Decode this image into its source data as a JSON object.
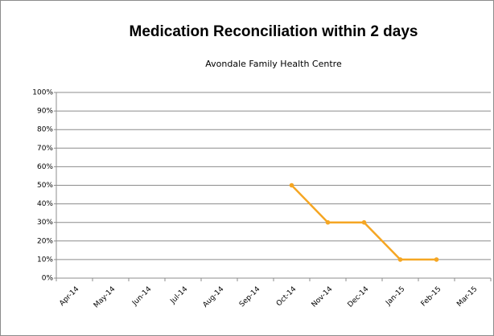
{
  "chart_data": {
    "type": "line",
    "title": "Medication Reconciliation within 2 days",
    "subtitle": "Avondale Family Health Centre",
    "categories": [
      "Apr-14",
      "May-14",
      "Jun-14",
      "Jul-14",
      "Aug-14",
      "Sep-14",
      "Oct-14",
      "Nov-14",
      "Dec-14",
      "Jan-15",
      "Feb-15",
      "Mar-15"
    ],
    "values": [
      null,
      null,
      null,
      null,
      null,
      null,
      50,
      30,
      30,
      10,
      10,
      null
    ],
    "color": "#f5a623",
    "ylim": [
      0,
      100
    ],
    "yticks": [
      {
        "value": 0,
        "label": "0%"
      },
      {
        "value": 10,
        "label": "10%"
      },
      {
        "value": 20,
        "label": "20%"
      },
      {
        "value": 30,
        "label": "30%"
      },
      {
        "value": 40,
        "label": "40%"
      },
      {
        "value": 50,
        "label": "50%"
      },
      {
        "value": 60,
        "label": "60%"
      },
      {
        "value": 70,
        "label": "70%"
      },
      {
        "value": 80,
        "label": "80%"
      },
      {
        "value": 90,
        "label": "90%"
      },
      {
        "value": 100,
        "label": "100%"
      }
    ],
    "grid": true
  }
}
